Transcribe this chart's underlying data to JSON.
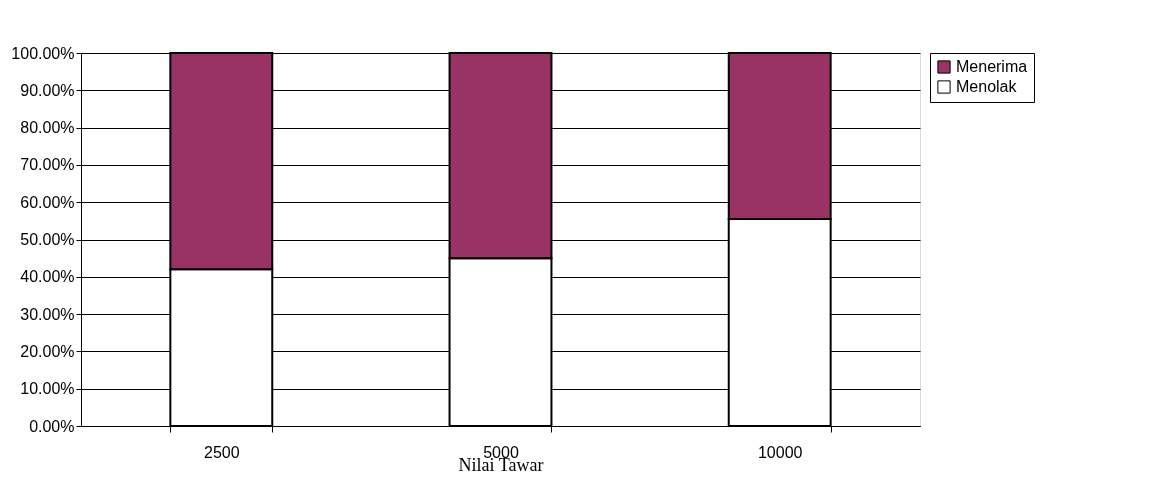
{
  "chart_data": {
    "type": "bar",
    "stacked": true,
    "xlabel": "Nilai Tawar",
    "categories": [
      "2500",
      "5000",
      "10000"
    ],
    "series": [
      {
        "name": "Menolak",
        "color": "#ffffff",
        "values": [
          42,
          45,
          55.5
        ]
      },
      {
        "name": "Menerima",
        "color": "#993366",
        "values": [
          58,
          55,
          44.5
        ]
      }
    ],
    "ylim": [
      0,
      100
    ],
    "yticks": [
      {
        "value": 0,
        "label": "0.00%"
      },
      {
        "value": 10,
        "label": "10.00%"
      },
      {
        "value": 20,
        "label": "20.00%"
      },
      {
        "value": 30,
        "label": "30.00%"
      },
      {
        "value": 40,
        "label": "40.00%"
      },
      {
        "value": 50,
        "label": "50.00%"
      },
      {
        "value": 60,
        "label": "60.00%"
      },
      {
        "value": 70,
        "label": "70.00%"
      },
      {
        "value": 80,
        "label": "80.00%"
      },
      {
        "value": 90,
        "label": "90.00%"
      },
      {
        "value": 100,
        "label": "100.00%"
      }
    ],
    "grid": "y",
    "legend": "right"
  }
}
